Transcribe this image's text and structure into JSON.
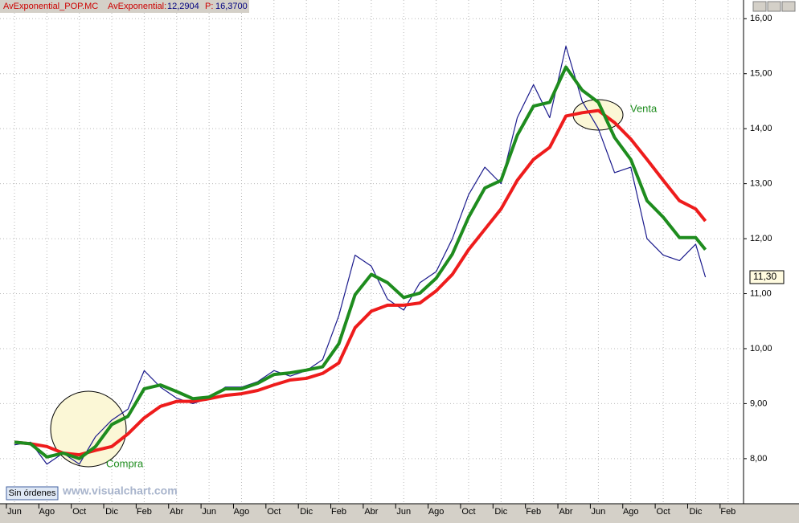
{
  "chart_data": {
    "type": "line",
    "header": {
      "symbol": "AvExponential_POP.MC",
      "indicator": "AvExponential:",
      "indicator_value": "12,2904",
      "price_label": "P:",
      "price_value": "16,3700"
    },
    "annotations": [
      "Compra",
      "Venta"
    ],
    "status": "Sin órdenes",
    "watermark": "www.visualchart.com",
    "last_price": {
      "value": 11.3,
      "label": "11,30"
    },
    "x": [
      0,
      1,
      2,
      3,
      4,
      5,
      6,
      7,
      8,
      9,
      10,
      11,
      12,
      13,
      14,
      15,
      16,
      17,
      18,
      19,
      20,
      21,
      22,
      23,
      24,
      25,
      26,
      27,
      28,
      29,
      30,
      31,
      32,
      33,
      34,
      35,
      36,
      37,
      38,
      39,
      40,
      41,
      42,
      42.6
    ],
    "series": [
      {
        "color": "#1a1a8c",
        "values": [
          8.25,
          8.3,
          7.9,
          8.1,
          7.9,
          8.4,
          8.7,
          8.9,
          9.6,
          9.3,
          9.1,
          9.0,
          9.1,
          9.3,
          9.3,
          9.4,
          9.6,
          9.5,
          9.6,
          9.8,
          10.6,
          11.7,
          11.5,
          10.9,
          10.7,
          11.2,
          11.4,
          12.0,
          12.8,
          13.3,
          13.0,
          14.2,
          14.8,
          14.2,
          15.5,
          14.5,
          14.0,
          13.2,
          13.3,
          12.0,
          11.7,
          11.6,
          11.9,
          11.3
        ]
      },
      {
        "color": "#ee1c1c",
        "values": [
          8.3,
          8.27,
          8.22,
          8.1,
          8.07,
          8.15,
          8.22,
          8.45,
          8.74,
          8.95,
          9.04,
          9.04,
          9.09,
          9.15,
          9.18,
          9.24,
          9.34,
          9.43,
          9.46,
          9.55,
          9.74,
          10.38,
          10.68,
          10.79,
          10.79,
          10.83,
          11.05,
          11.35,
          11.8,
          12.17,
          12.54,
          13.06,
          13.44,
          13.66,
          14.23,
          14.29,
          14.33,
          14.11,
          13.81,
          13.44,
          13.06,
          12.69,
          12.54,
          12.32
        ]
      },
      {
        "color": "#1e8c1e",
        "values": [
          8.3,
          8.27,
          8.03,
          8.1,
          8.0,
          8.22,
          8.62,
          8.77,
          9.27,
          9.34,
          9.22,
          9.09,
          9.12,
          9.27,
          9.27,
          9.37,
          9.53,
          9.56,
          9.61,
          9.67,
          10.09,
          10.98,
          11.35,
          11.2,
          10.93,
          11.01,
          11.28,
          11.72,
          12.39,
          12.92,
          13.06,
          13.88,
          14.41,
          14.48,
          15.12,
          14.7,
          14.48,
          13.84,
          13.44,
          12.69,
          12.39,
          12.02,
          12.02,
          11.8
        ]
      }
    ],
    "xlim": [
      -0.89,
      44.95
    ],
    "xticks": [
      {
        "value": 0,
        "label": "Jun"
      },
      {
        "value": 2,
        "label": "Ago"
      },
      {
        "value": 4,
        "label": "Oct"
      },
      {
        "value": 6,
        "label": "Dic"
      },
      {
        "value": 8,
        "label": "Feb"
      },
      {
        "value": 10,
        "label": "Abr"
      },
      {
        "value": 12,
        "label": "Jun"
      },
      {
        "value": 14,
        "label": "Ago"
      },
      {
        "value": 16,
        "label": "Oct"
      },
      {
        "value": 18,
        "label": "Dic"
      },
      {
        "value": 20,
        "label": "Feb"
      },
      {
        "value": 22,
        "label": "Abr"
      },
      {
        "value": 24,
        "label": "Jun"
      },
      {
        "value": 26,
        "label": "Ago"
      },
      {
        "value": 28,
        "label": "Oct"
      },
      {
        "value": 30,
        "label": "Dic"
      },
      {
        "value": 32,
        "label": "Feb"
      },
      {
        "value": 34,
        "label": "Abr"
      },
      {
        "value": 36,
        "label": "Jun"
      },
      {
        "value": 38,
        "label": "Ago"
      },
      {
        "value": 40,
        "label": "Oct"
      },
      {
        "value": 42,
        "label": "Dic"
      },
      {
        "value": 44,
        "label": "Feb"
      }
    ],
    "ylim": [
      7.18,
      16.34
    ],
    "yticks": [
      {
        "value": 8,
        "label": "8,00"
      },
      {
        "value": 9,
        "label": "9,00"
      },
      {
        "value": 10,
        "label": "10,00"
      },
      {
        "value": 11,
        "label": "11,00"
      },
      {
        "value": 12,
        "label": "12,00"
      },
      {
        "value": 13,
        "label": "13,00"
      },
      {
        "value": 14,
        "label": "14,00"
      },
      {
        "value": 15,
        "label": "15,00"
      },
      {
        "value": 16,
        "label": "16,00"
      }
    ],
    "grid": true
  }
}
